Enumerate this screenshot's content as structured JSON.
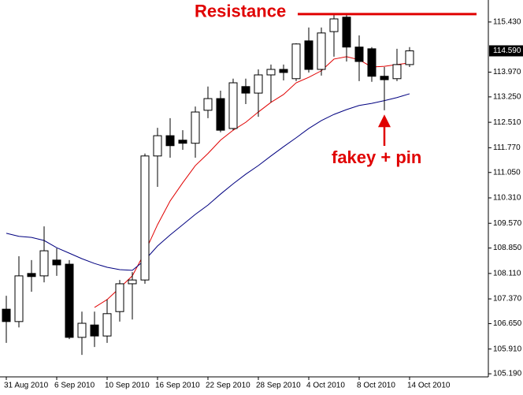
{
  "chart_data": {
    "type": "candlestick",
    "categories": [
      "31 Aug 2010",
      null,
      null,
      null,
      "6 Sep 2010",
      null,
      null,
      null,
      "10 Sep 2010",
      null,
      null,
      null,
      "16 Sep 2010",
      null,
      null,
      null,
      "22 Sep 2010",
      null,
      null,
      null,
      "28 Sep 2010",
      null,
      null,
      null,
      "4 Oct 2010",
      null,
      null,
      null,
      "8 Oct 2010",
      null,
      null,
      null,
      "14 Oct 2010"
    ],
    "open": [
      107.07,
      106.71,
      108.11,
      108.04,
      108.5,
      108.38,
      106.25,
      106.61,
      106.29,
      107.0,
      107.81,
      107.92,
      111.53,
      112.12,
      111.99,
      111.9,
      112.86,
      113.2,
      112.33,
      113.55,
      113.36,
      113.89,
      114.05,
      113.78,
      114.88,
      114.05,
      115.15,
      115.57,
      114.7,
      114.65,
      113.85,
      113.78,
      114.19
    ],
    "high": [
      107.46,
      108.61,
      108.5,
      109.48,
      108.84,
      108.5,
      107.0,
      107.0,
      107.35,
      107.92,
      108.15,
      111.6,
      112.35,
      112.63,
      112.28,
      112.97,
      113.55,
      113.43,
      113.78,
      113.78,
      114.05,
      114.19,
      114.19,
      114.81,
      115.27,
      115.27,
      115.66,
      115.66,
      115.04,
      114.7,
      114.12,
      114.65,
      114.7
    ],
    "low": [
      106.09,
      106.54,
      107.58,
      107.85,
      108.04,
      106.2,
      105.74,
      105.97,
      106.09,
      106.71,
      106.77,
      107.81,
      110.63,
      111.48,
      111.71,
      111.48,
      112.63,
      112.22,
      112.28,
      113.04,
      112.67,
      113.09,
      113.73,
      113.71,
      113.96,
      113.87,
      114.42,
      114.28,
      113.71,
      113.69,
      112.86,
      113.71,
      114.12
    ],
    "close": [
      106.71,
      108.04,
      108.02,
      108.77,
      108.36,
      106.25,
      106.66,
      106.29,
      106.94,
      107.81,
      107.92,
      111.53,
      112.12,
      111.83,
      111.9,
      112.81,
      113.2,
      112.28,
      113.66,
      113.36,
      113.89,
      114.05,
      113.96,
      114.79,
      114.05,
      115.11,
      115.52,
      114.7,
      114.28,
      113.85,
      113.75,
      114.19,
      114.59
    ],
    "up_color": "#ffffff",
    "down_color": "#000000",
    "lines": [
      {
        "color": "#e00000",
        "values": [
          null,
          null,
          null,
          null,
          null,
          null,
          null,
          107.12,
          107.35,
          107.69,
          108.04,
          108.73,
          109.53,
          110.22,
          110.75,
          111.25,
          111.6,
          111.99,
          112.28,
          112.51,
          112.81,
          113.09,
          113.32,
          113.66,
          113.82,
          114.01,
          114.35,
          114.42,
          114.33,
          114.12,
          114.14,
          114.19,
          114.24
        ]
      },
      {
        "color": "#000080",
        "values": [
          109.28,
          109.19,
          109.16,
          109.07,
          108.86,
          108.7,
          108.54,
          108.4,
          108.29,
          108.22,
          108.2,
          108.5,
          108.91,
          109.23,
          109.53,
          109.83,
          110.1,
          110.42,
          110.72,
          111.0,
          111.25,
          111.53,
          111.8,
          112.06,
          112.33,
          112.56,
          112.74,
          112.88,
          113.0,
          113.06,
          113.14,
          113.23,
          113.34
        ]
      }
    ],
    "ylim": [
      105.1,
      116.07
    ],
    "yticks": [
      {
        "value": 105.19,
        "label": "105.190"
      },
      {
        "value": 105.91,
        "label": "105.910"
      },
      {
        "value": 106.65,
        "label": "106.650"
      },
      {
        "value": 107.37,
        "label": "107.370"
      },
      {
        "value": 108.11,
        "label": "108.110"
      },
      {
        "value": 108.85,
        "label": "108.850"
      },
      {
        "value": 109.57,
        "label": "109.570"
      },
      {
        "value": 110.31,
        "label": "110.310"
      },
      {
        "value": 111.05,
        "label": "111.050"
      },
      {
        "value": 111.77,
        "label": "111.770"
      },
      {
        "value": 112.51,
        "label": "112.510"
      },
      {
        "value": 113.25,
        "label": "113.250"
      },
      {
        "value": 113.97,
        "label": "113.970"
      },
      {
        "value": 115.43,
        "label": "115.430"
      }
    ],
    "last_price": {
      "value": 114.59,
      "label": "114.590"
    },
    "resistance": {
      "text": "Resistance",
      "value": 115.66,
      "color": "#e00000"
    },
    "annotation": {
      "text": "fakey + pin",
      "color": "#e00000"
    }
  }
}
